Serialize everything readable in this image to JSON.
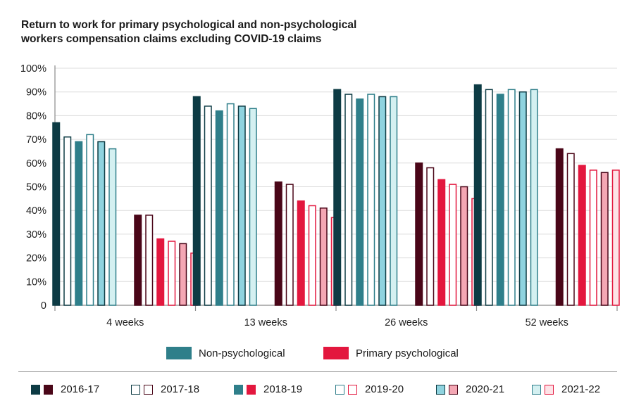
{
  "title": "Return to work for primary psychological and non-psychological workers compensation claims excluding COVID-19 claims",
  "chart_data": {
    "type": "bar",
    "categories": [
      "4 weeks",
      "13 weeks",
      "26 weeks",
      "52 weeks"
    ],
    "y_ticks": [
      "0",
      "10%",
      "20%",
      "30%",
      "40%",
      "50%",
      "60%",
      "70%",
      "80%",
      "90%",
      "100%"
    ],
    "ylim": [
      0,
      100
    ],
    "years": [
      "2016-17",
      "2017-18",
      "2018-19",
      "2019-20",
      "2020-21",
      "2021-22"
    ],
    "groups": [
      {
        "name": "Non-psychological",
        "values": {
          "2016-17": [
            77,
            88,
            91,
            93
          ],
          "2017-18": [
            71,
            84,
            89,
            91
          ],
          "2018-19": [
            69,
            82,
            87,
            89
          ],
          "2019-20": [
            72,
            85,
            89,
            91
          ],
          "2020-21": [
            69,
            84,
            88,
            90
          ],
          "2021-22": [
            66,
            83,
            88,
            91
          ]
        }
      },
      {
        "name": "Primary psychological",
        "values": {
          "2016-17": [
            38,
            52,
            60,
            66
          ],
          "2017-18": [
            38,
            51,
            58,
            64
          ],
          "2018-19": [
            28,
            44,
            53,
            59
          ],
          "2019-20": [
            27,
            42,
            51,
            57
          ],
          "2020-21": [
            26,
            41,
            50,
            56
          ],
          "2021-22": [
            22,
            37,
            45,
            57
          ]
        }
      }
    ],
    "styles": {
      "Non-psychological": {
        "2016-17": {
          "fill": "#0d3b44",
          "stroke": "#0d3b44"
        },
        "2017-18": {
          "fill": "#ffffff",
          "stroke": "#0d3b44"
        },
        "2018-19": {
          "fill": "#2f7f8a",
          "stroke": "#2f7f8a"
        },
        "2019-20": {
          "fill": "#ffffff",
          "stroke": "#2f7f8a"
        },
        "2020-21": {
          "fill": "#8fd3df",
          "stroke": "#0d3b44"
        },
        "2021-22": {
          "fill": "#d4f0f1",
          "stroke": "#2f7f8a"
        }
      },
      "Primary psychological": {
        "2016-17": {
          "fill": "#4a0618",
          "stroke": "#4a0618"
        },
        "2017-18": {
          "fill": "#ffffff",
          "stroke": "#4a0618"
        },
        "2018-19": {
          "fill": "#e3173e",
          "stroke": "#e3173e"
        },
        "2019-20": {
          "fill": "#ffffff",
          "stroke": "#e3173e"
        },
        "2020-21": {
          "fill": "#f4a7b4",
          "stroke": "#4a0618"
        },
        "2021-22": {
          "fill": "#fde3e7",
          "stroke": "#e3173e"
        }
      }
    },
    "legend_series": [
      {
        "name": "Non-psychological",
        "color": "#2f7f8a"
      },
      {
        "name": "Primary psychological",
        "color": "#e3173e"
      }
    ]
  }
}
